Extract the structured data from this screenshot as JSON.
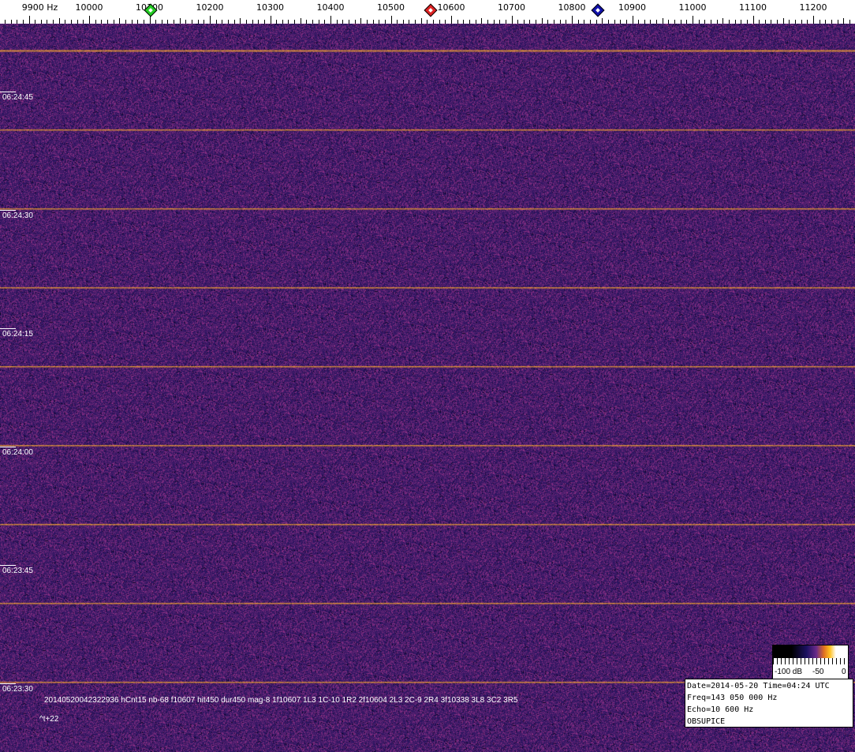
{
  "frequency_axis": {
    "unit": "Hz",
    "ticks": [
      {
        "value": 9900,
        "label": "9900 Hz"
      },
      {
        "value": 10000,
        "label": "10000"
      },
      {
        "value": 10100,
        "label": "10100"
      },
      {
        "value": 10200,
        "label": "10200"
      },
      {
        "value": 10300,
        "label": "10300"
      },
      {
        "value": 10400,
        "label": "10400"
      },
      {
        "value": 10500,
        "label": "10500"
      },
      {
        "value": 10600,
        "label": "10600"
      },
      {
        "value": 10700,
        "label": "10700"
      },
      {
        "value": 10800,
        "label": "10800"
      },
      {
        "value": 10900,
        "label": "10900"
      },
      {
        "value": 11000,
        "label": "11000"
      },
      {
        "value": 11100,
        "label": "11100"
      },
      {
        "value": 11200,
        "label": "11200"
      }
    ],
    "markers": [
      {
        "name": "green-marker",
        "freq": 10102,
        "color": "#22cc22"
      },
      {
        "name": "red-marker",
        "freq": 10566,
        "color": "#dd2222"
      },
      {
        "name": "blue-marker",
        "freq": 10843,
        "color": "#1111aa"
      }
    ]
  },
  "time_labels": [
    "06:24:45",
    "06:24:30",
    "06:24:15",
    "06:24:00",
    "06:23:45",
    "06:23:30"
  ],
  "info_line": "20140520042322936 hCnt15 nb-68 f10607 hit450 dur450 mag-8 1f10607 1L3 1C-10 1R2 2f10604 2L3 2C-9 2R4 3f10338 3L8 3C2 3R5",
  "time_offset": "^t+22",
  "colorbar": {
    "labels": [
      "-100 dB",
      "-50",
      "0"
    ]
  },
  "status_box": {
    "line1": "Date=2014-05-20 Time=04:24 UTC",
    "line2": "Freq=143 050 000 Hz",
    "line3": "Echo=10 600 Hz",
    "line4": "OBSUPICE"
  },
  "colors": {
    "background": "#3a1f72",
    "signal": "#f0a030"
  }
}
